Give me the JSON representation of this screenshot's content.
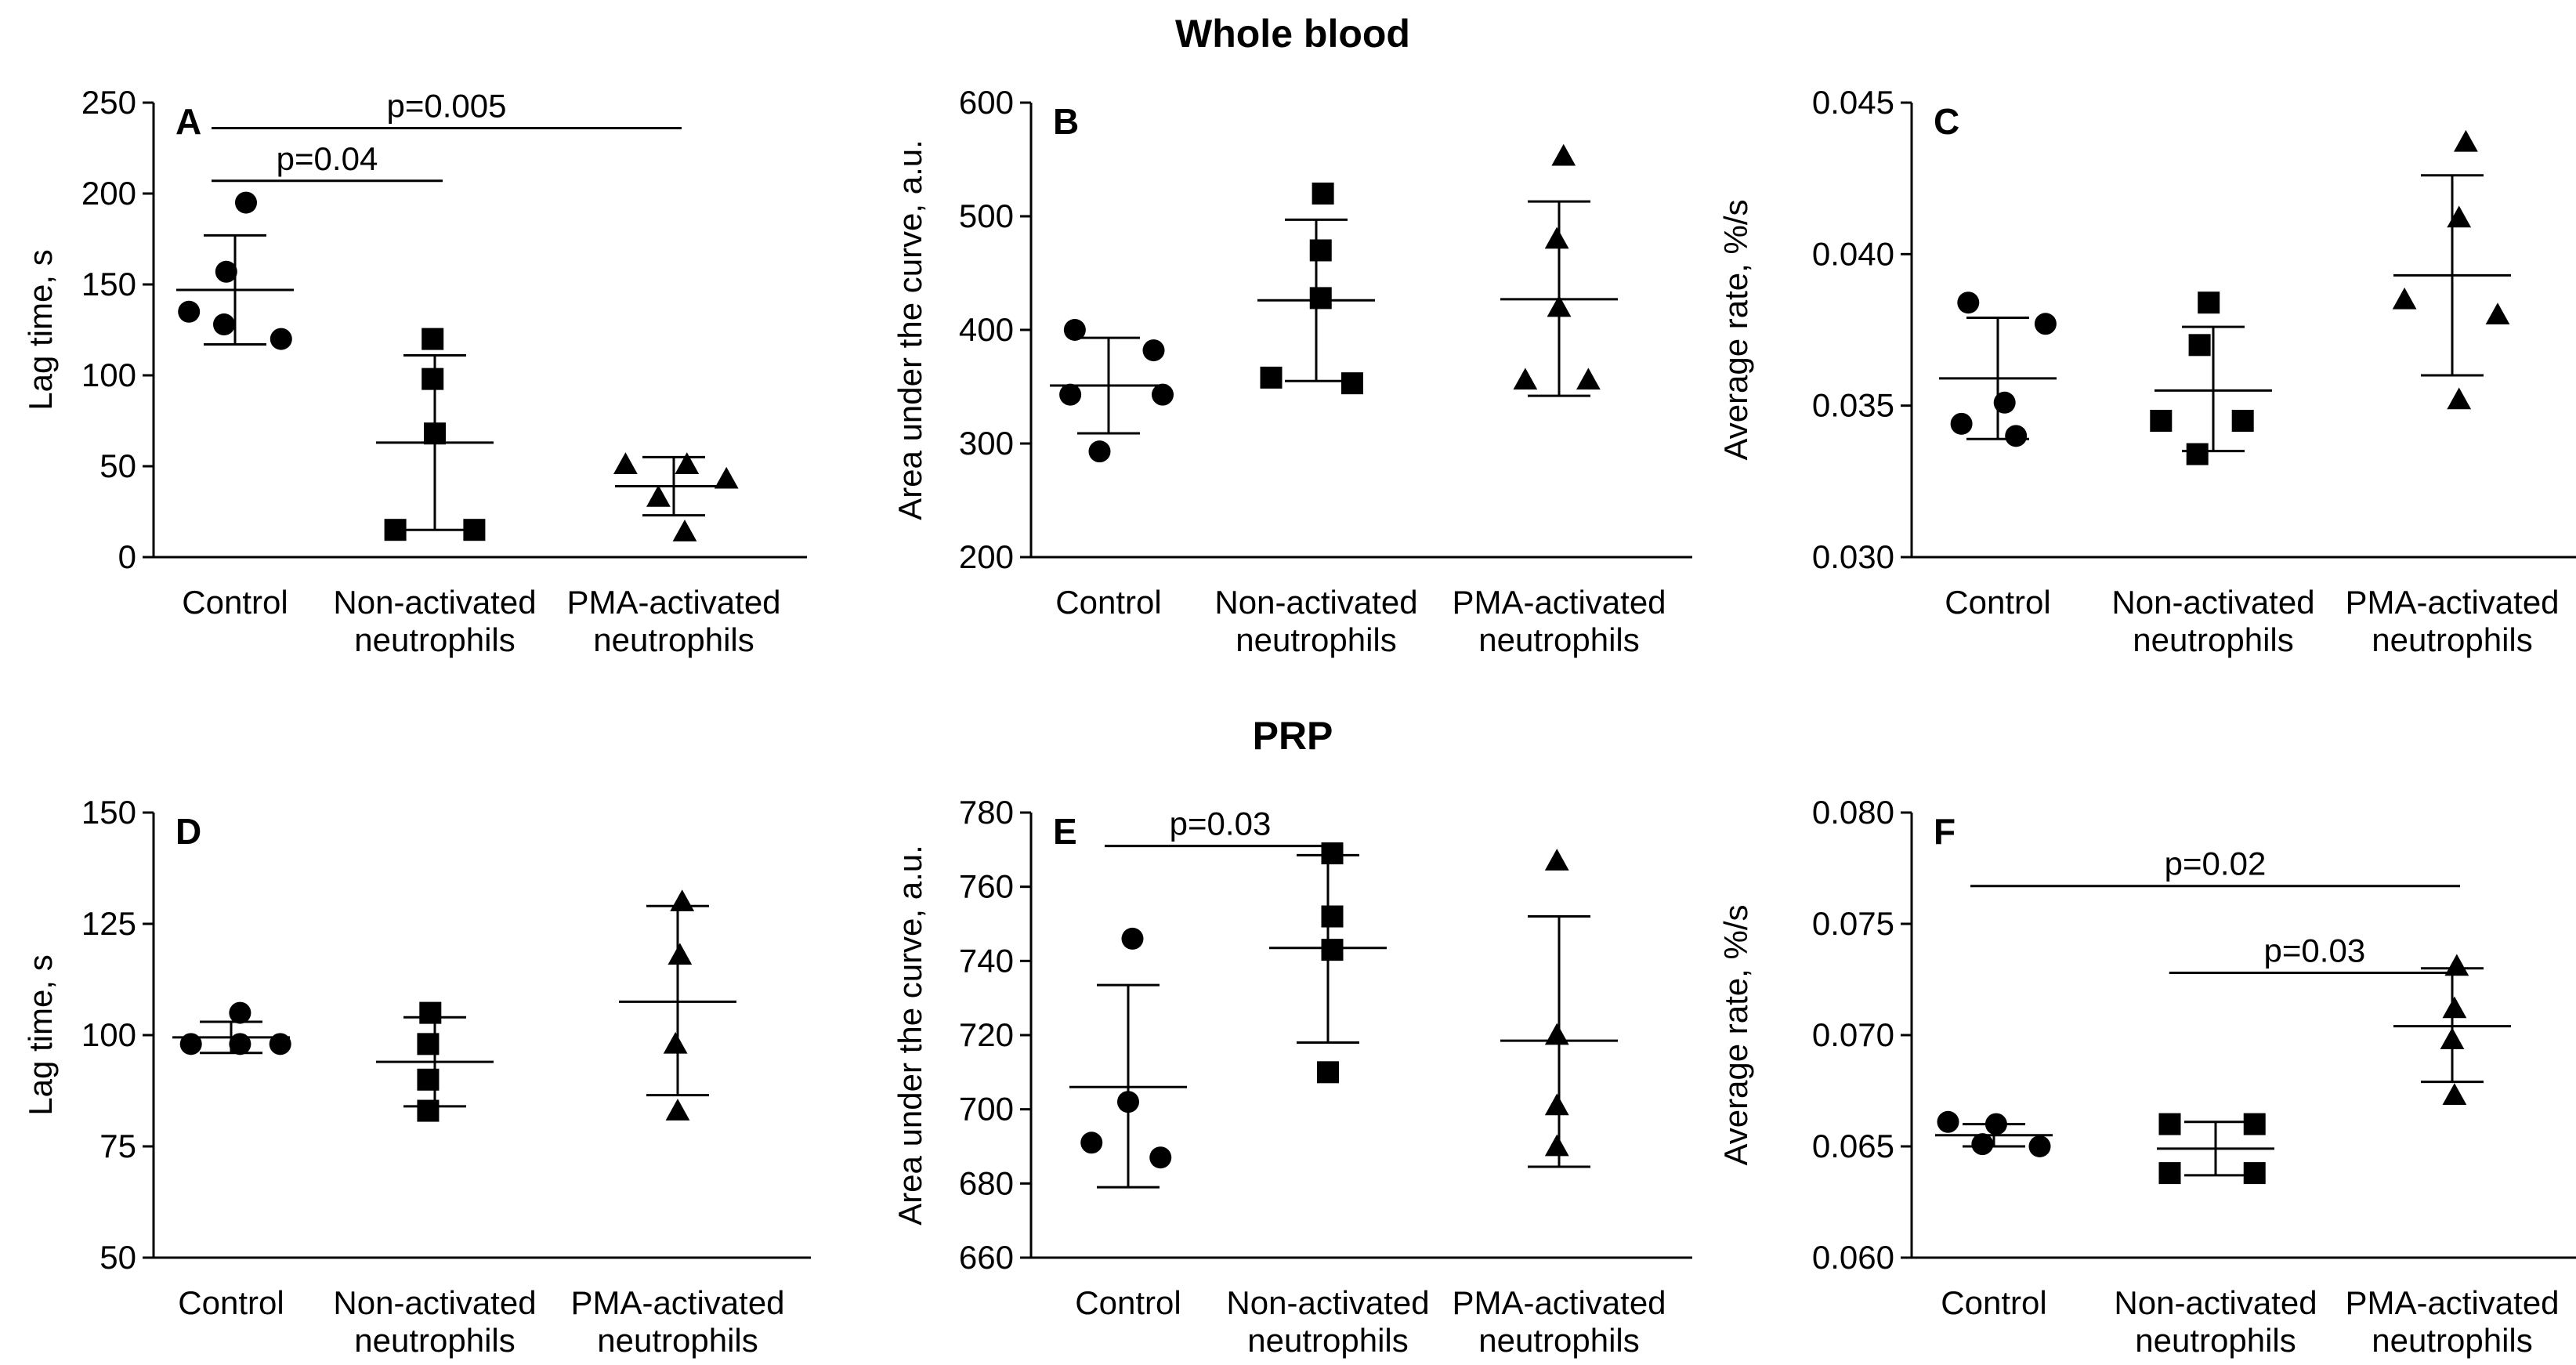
{
  "sections": {
    "top_title": "Whole blood",
    "bottom_title": "PRP"
  },
  "chart_data": [
    {
      "id": "A",
      "type": "scatter",
      "panel_label": "A",
      "ylabel": "Lag time, s",
      "ylim": [
        0,
        250
      ],
      "yticks": [
        0,
        50,
        100,
        150,
        200,
        250
      ],
      "categories": [
        [
          "Control"
        ],
        [
          "Non-activated",
          "neutrophils"
        ],
        [
          "PMA-activated",
          "neutrophils"
        ]
      ],
      "series": [
        {
          "category": 0,
          "marker": "circle",
          "points": [
            [
              -0.21,
              135
            ],
            [
              -0.04,
              157
            ],
            [
              0.05,
              195
            ],
            [
              -0.05,
              128
            ],
            [
              0.21,
              120
            ]
          ],
          "mean": 147,
          "sd_upper": 177,
          "sd_lower": 117
        },
        {
          "category": 1,
          "marker": "square",
          "points": [
            [
              -0.18,
              15
            ],
            [
              0.18,
              15
            ],
            [
              0,
              68
            ],
            [
              -0.01,
              98
            ],
            [
              -0.01,
              120
            ]
          ],
          "mean": 63,
          "sd_upper": 111,
          "sd_lower": 15
        },
        {
          "category": 2,
          "marker": "triangle",
          "points": [
            [
              -0.22,
              51
            ],
            [
              0.06,
              51
            ],
            [
              0.24,
              43
            ],
            [
              -0.07,
              33
            ],
            [
              0.05,
              14
            ]
          ],
          "mean": 39,
          "sd_upper": 55,
          "sd_lower": 23
        }
      ],
      "significance": [
        {
          "label": "p=0.005",
          "from": 0,
          "to": 2,
          "y": 236
        },
        {
          "label": "p=0.04",
          "from": 0,
          "to": 1,
          "y": 207
        }
      ]
    },
    {
      "id": "B",
      "type": "scatter",
      "panel_label": "B",
      "ylabel": "Area under the curve, a.u.",
      "ylim": [
        200,
        600
      ],
      "yticks": [
        200,
        300,
        400,
        500,
        600
      ],
      "categories": [
        [
          "Control"
        ],
        [
          "Non-activated",
          "neutrophils"
        ],
        [
          "PMA-activated",
          "neutrophils"
        ]
      ],
      "series": [
        {
          "category": 0,
          "marker": "circle",
          "points": [
            [
              -0.15,
              400
            ],
            [
              0.2,
              382
            ],
            [
              -0.17,
              343
            ],
            [
              0.24,
              343
            ],
            [
              -0.04,
              293
            ]
          ],
          "mean": 351,
          "sd_upper": 393,
          "sd_lower": 309
        },
        {
          "category": 1,
          "marker": "square",
          "points": [
            [
              0.03,
              520
            ],
            [
              0.02,
              470
            ],
            [
              0.02,
              428
            ],
            [
              -0.2,
              358
            ],
            [
              0.16,
              353
            ]
          ],
          "mean": 426,
          "sd_upper": 497,
          "sd_lower": 355
        },
        {
          "category": 2,
          "marker": "triangle",
          "points": [
            [
              0.02,
              553
            ],
            [
              -0.01,
              480
            ],
            [
              0,
              420
            ],
            [
              -0.15,
              356
            ],
            [
              0.13,
              356
            ]
          ],
          "mean": 427,
          "sd_upper": 513,
          "sd_lower": 342
        }
      ],
      "significance": []
    },
    {
      "id": "C",
      "type": "scatter",
      "panel_label": "C",
      "ylabel": "Average rate, %/s",
      "ylim": [
        0.03,
        0.045
      ],
      "yticks": [
        0.03,
        0.035,
        0.04,
        0.045
      ],
      "decimals": 3,
      "categories": [
        [
          "Control"
        ],
        [
          "Non-activated",
          "neutrophils"
        ],
        [
          "PMA-activated",
          "neutrophils"
        ]
      ],
      "series": [
        {
          "category": 0,
          "marker": "circle",
          "points": [
            [
              -0.13,
              0.0384
            ],
            [
              0.21,
              0.0377
            ],
            [
              0.03,
              0.0351
            ],
            [
              -0.16,
              0.0344
            ],
            [
              0.08,
              0.034
            ]
          ],
          "mean": 0.0359,
          "sd_upper": 0.0379,
          "sd_lower": 0.0339
        },
        {
          "category": 1,
          "marker": "square",
          "points": [
            [
              -0.02,
              0.0384
            ],
            [
              -0.06,
              0.037
            ],
            [
              -0.23,
              0.0345
            ],
            [
              0.13,
              0.0345
            ],
            [
              -0.07,
              0.0334
            ]
          ],
          "mean": 0.0355,
          "sd_upper": 0.0376,
          "sd_lower": 0.0335
        },
        {
          "category": 2,
          "marker": "triangle",
          "points": [
            [
              0.06,
              0.0437
            ],
            [
              0.03,
              0.0412
            ],
            [
              -0.21,
              0.0385
            ],
            [
              0.2,
              0.038
            ],
            [
              0.03,
              0.0352
            ]
          ],
          "mean": 0.0393,
          "sd_upper": 0.0426,
          "sd_lower": 0.036
        }
      ],
      "significance": []
    },
    {
      "id": "D",
      "type": "scatter",
      "panel_label": "D",
      "ylabel": "Lag time, s",
      "ylim": [
        50,
        150
      ],
      "yticks": [
        50,
        75,
        100,
        125,
        150
      ],
      "categories": [
        [
          "Control"
        ],
        [
          "Non-activated",
          "neutrophils"
        ],
        [
          "PMA-activated",
          "neutrophils"
        ]
      ],
      "series": [
        {
          "category": 0,
          "marker": "circle",
          "points": [
            [
              0.04,
              105
            ],
            [
              -0.18,
              98
            ],
            [
              0.04,
              98
            ],
            [
              0.22,
              98
            ]
          ],
          "mean": 99.5,
          "sd_upper": 103,
          "sd_lower": 96
        },
        {
          "category": 1,
          "marker": "square",
          "points": [
            [
              -0.02,
              105
            ],
            [
              -0.03,
              98
            ],
            [
              -0.03,
              90
            ],
            [
              -0.03,
              83
            ]
          ],
          "mean": 94,
          "sd_upper": 104,
          "sd_lower": 84
        },
        {
          "category": 2,
          "marker": "triangle",
          "points": [
            [
              0.02,
              130
            ],
            [
              0.01,
              118
            ],
            [
              -0.01,
              98
            ],
            [
              0,
              83
            ]
          ],
          "mean": 107.5,
          "sd_upper": 129,
          "sd_lower": 86.5
        }
      ],
      "significance": []
    },
    {
      "id": "E",
      "type": "scatter",
      "panel_label": "E",
      "ylabel": "Area under the curve, a.u.",
      "ylim": [
        660,
        780
      ],
      "yticks": [
        660,
        680,
        700,
        720,
        740,
        760,
        780
      ],
      "categories": [
        [
          "Control"
        ],
        [
          "Non-activated",
          "neutrophils"
        ],
        [
          "PMA-activated",
          "neutrophils"
        ]
      ],
      "series": [
        {
          "category": 0,
          "marker": "circle",
          "points": [
            [
              0.02,
              746
            ],
            [
              0,
              702
            ],
            [
              -0.17,
              691
            ],
            [
              0.15,
              687
            ]
          ],
          "mean": 706,
          "sd_upper": 733.5,
          "sd_lower": 679
        },
        {
          "category": 1,
          "marker": "square",
          "points": [
            [
              0.02,
              769
            ],
            [
              0.02,
              752
            ],
            [
              0.02,
              743
            ],
            [
              0,
              710
            ]
          ],
          "mean": 743.5,
          "sd_upper": 768.5,
          "sd_lower": 718
        },
        {
          "category": 2,
          "marker": "triangle",
          "points": [
            [
              -0.01,
              767
            ],
            [
              -0.01,
              720
            ],
            [
              -0.01,
              701
            ],
            [
              -0.01,
              690
            ]
          ],
          "mean": 718.5,
          "sd_upper": 752,
          "sd_lower": 684.5
        }
      ],
      "significance": [
        {
          "label": "p=0.03",
          "from": 0,
          "to": 1,
          "y": 771
        }
      ]
    },
    {
      "id": "F",
      "type": "scatter",
      "panel_label": "F",
      "ylabel": "Average rate, %/s",
      "ylim": [
        0.06,
        0.08
      ],
      "yticks": [
        0.06,
        0.065,
        0.07,
        0.075,
        0.08
      ],
      "decimals": 3,
      "categories": [
        [
          "Control"
        ],
        [
          "Non-activated",
          "neutrophils"
        ],
        [
          "PMA-activated",
          "neutrophils"
        ]
      ],
      "series": [
        {
          "category": 0,
          "marker": "circle",
          "points": [
            [
              -0.2,
              0.0661
            ],
            [
              0.01,
              0.066
            ],
            [
              -0.05,
              0.0651
            ],
            [
              0.2,
              0.065
            ]
          ],
          "mean": 0.0655,
          "sd_upper": 0.066,
          "sd_lower": 0.065
        },
        {
          "category": 1,
          "marker": "square",
          "points": [
            [
              -0.2,
              0.066
            ],
            [
              0.17,
              0.066
            ],
            [
              -0.2,
              0.0638
            ],
            [
              0.17,
              0.0638
            ]
          ],
          "mean": 0.0649,
          "sd_upper": 0.0661,
          "sd_lower": 0.0637
        },
        {
          "category": 2,
          "marker": "triangle",
          "points": [
            [
              0.02,
              0.0731
            ],
            [
              0.01,
              0.0712
            ],
            [
              0,
              0.0698
            ],
            [
              0.01,
              0.0673
            ]
          ],
          "mean": 0.0704,
          "sd_upper": 0.073,
          "sd_lower": 0.0679
        }
      ],
      "significance": [
        {
          "label": "p=0.02",
          "from": 0,
          "to": 2,
          "y": 0.0767
        },
        {
          "label": "p=0.03",
          "from": 1,
          "to": 2,
          "y": 0.0728,
          "start_offset": -0.1
        }
      ]
    }
  ]
}
